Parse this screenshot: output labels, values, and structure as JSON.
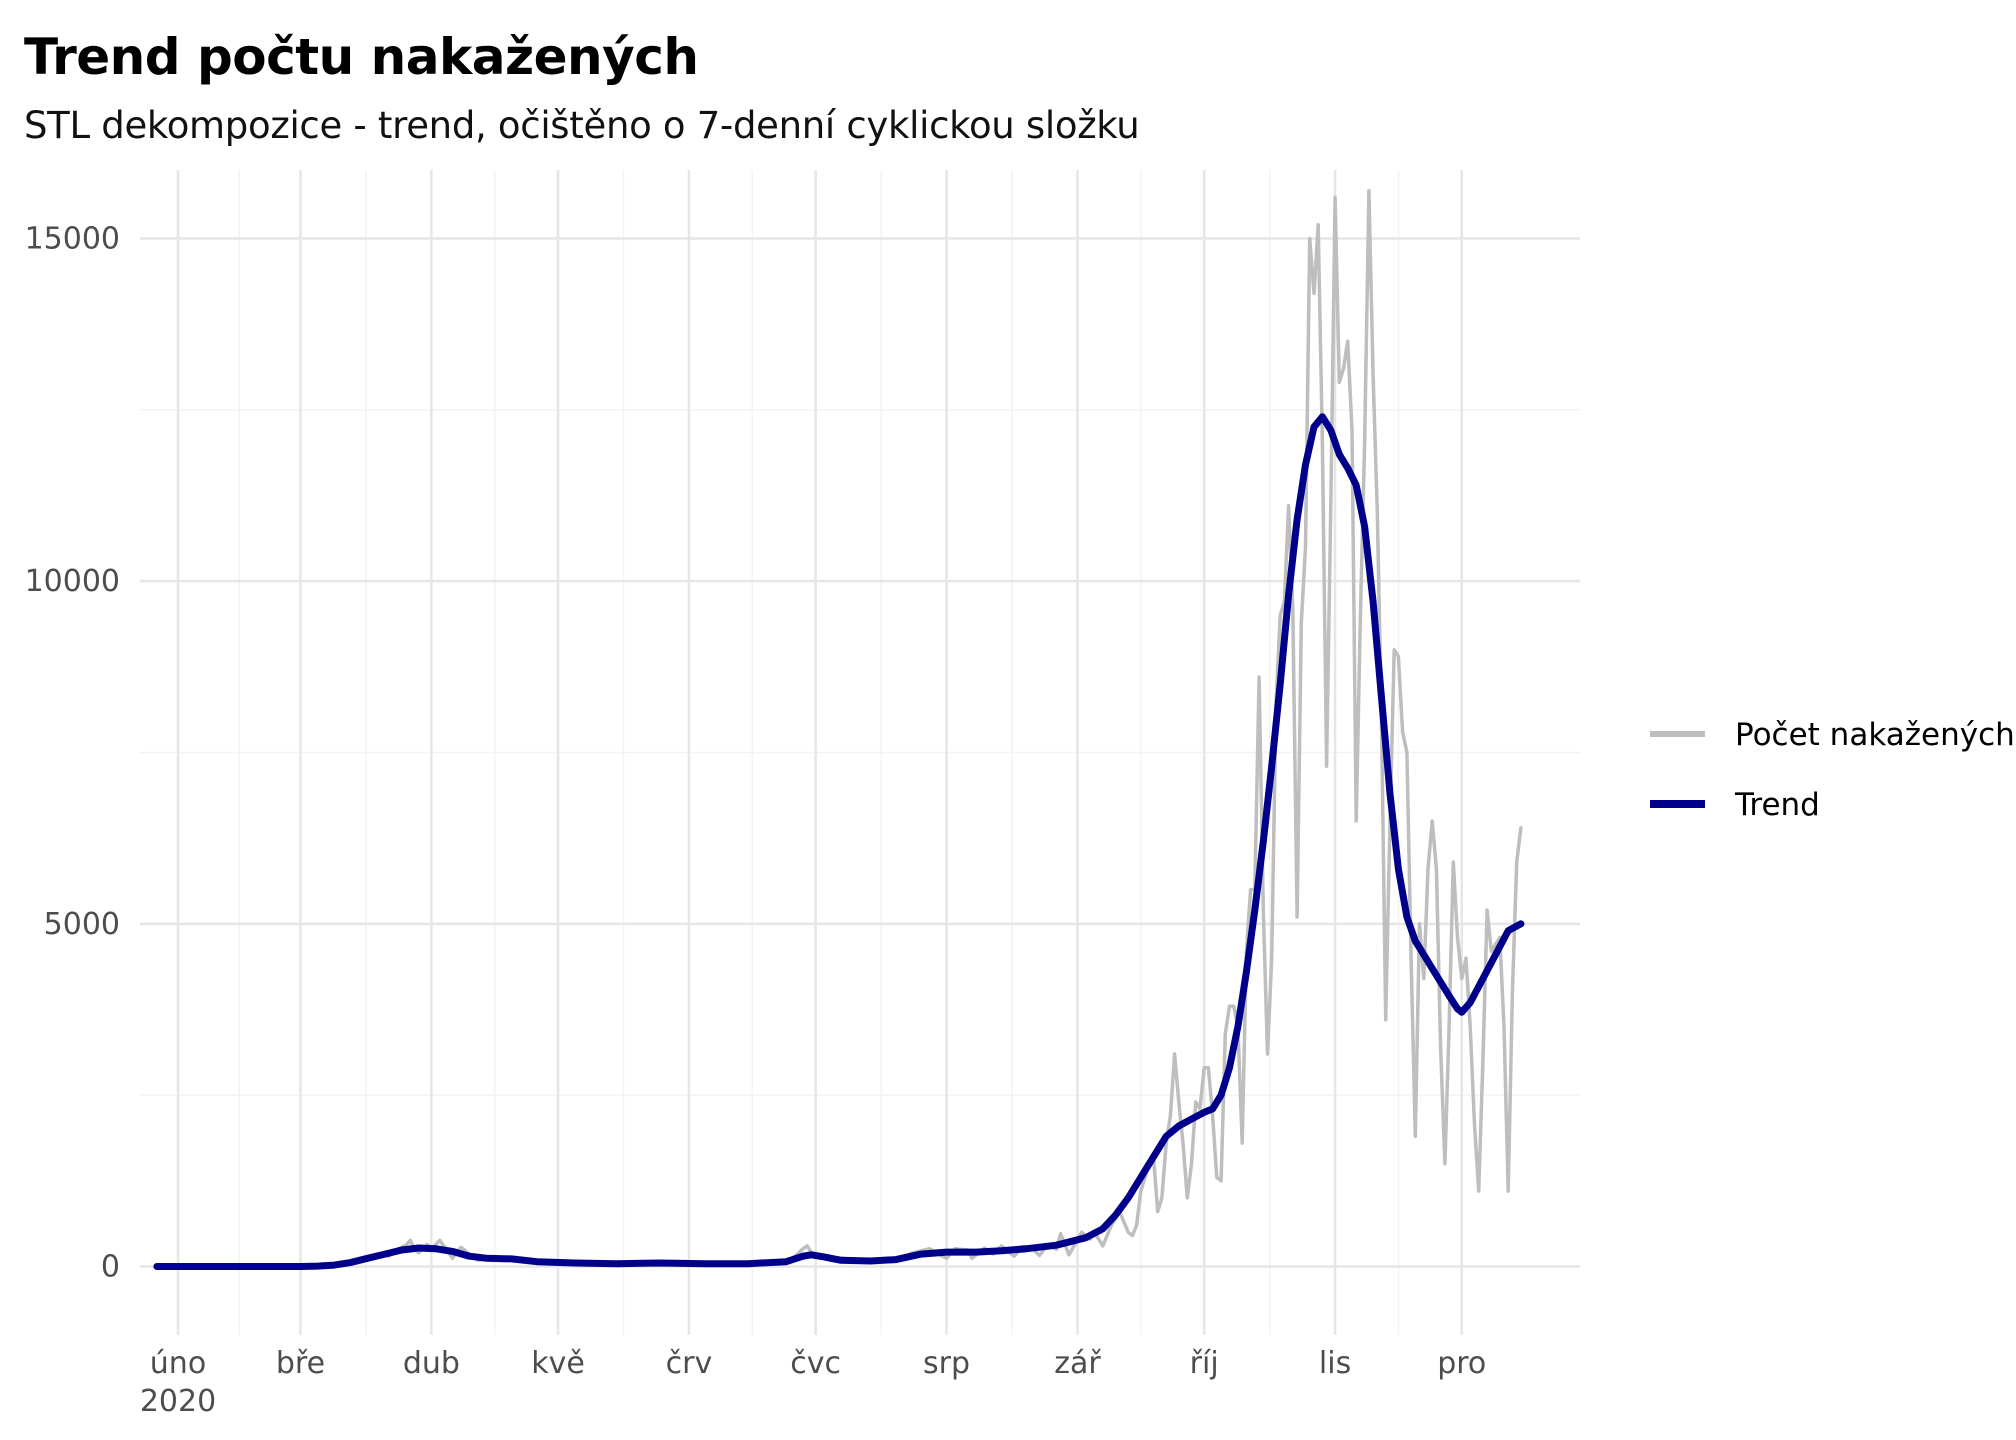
{
  "chart_data": {
    "type": "line",
    "title": "Trend počtu nakažených",
    "subtitle": "STL dekompozice - trend, očištěno o 7-denní cyklickou složku",
    "xlabel": "",
    "ylabel": "",
    "x_range": [
      "2020-01-23",
      "2020-12-29"
    ],
    "ylim": [
      -1000,
      16000
    ],
    "grid": true,
    "legend_position": "right",
    "x_ticks": [
      {
        "date": "2020-02-01",
        "label": "úno",
        "sublabel": "2020"
      },
      {
        "date": "2020-03-01",
        "label": "bře",
        "sublabel": ""
      },
      {
        "date": "2020-04-01",
        "label": "dub",
        "sublabel": ""
      },
      {
        "date": "2020-05-01",
        "label": "kvě",
        "sublabel": ""
      },
      {
        "date": "2020-06-01",
        "label": "črv",
        "sublabel": ""
      },
      {
        "date": "2020-07-01",
        "label": "čvc",
        "sublabel": ""
      },
      {
        "date": "2020-08-01",
        "label": "srp",
        "sublabel": ""
      },
      {
        "date": "2020-09-01",
        "label": "zář",
        "sublabel": ""
      },
      {
        "date": "2020-10-01",
        "label": "říj",
        "sublabel": ""
      },
      {
        "date": "2020-11-01",
        "label": "lis",
        "sublabel": ""
      },
      {
        "date": "2020-12-01",
        "label": "pro",
        "sublabel": ""
      }
    ],
    "y_ticks": [
      {
        "value": 0,
        "label": "0"
      },
      {
        "value": 5000,
        "label": "5000"
      },
      {
        "value": 10000,
        "label": "10000"
      },
      {
        "value": 15000,
        "label": "15000"
      }
    ],
    "series": [
      {
        "name": "Počet nakažených",
        "color": "#bebebe",
        "points": [
          [
            "2020-01-27",
            0
          ],
          [
            "2020-02-15",
            0
          ],
          [
            "2020-02-29",
            0
          ],
          [
            "2020-03-03",
            3
          ],
          [
            "2020-03-06",
            10
          ],
          [
            "2020-03-09",
            25
          ],
          [
            "2020-03-12",
            50
          ],
          [
            "2020-03-15",
            90
          ],
          [
            "2020-03-18",
            150
          ],
          [
            "2020-03-20",
            180
          ],
          [
            "2020-03-22",
            150
          ],
          [
            "2020-03-24",
            250
          ],
          [
            "2020-03-26",
            310
          ],
          [
            "2020-03-27",
            380
          ],
          [
            "2020-03-28",
            250
          ],
          [
            "2020-03-29",
            200
          ],
          [
            "2020-03-31",
            320
          ],
          [
            "2020-04-01",
            260
          ],
          [
            "2020-04-03",
            380
          ],
          [
            "2020-04-05",
            210
          ],
          [
            "2020-04-06",
            120
          ],
          [
            "2020-04-08",
            280
          ],
          [
            "2020-04-10",
            180
          ],
          [
            "2020-04-12",
            90
          ],
          [
            "2020-04-16",
            120
          ],
          [
            "2020-04-20",
            110
          ],
          [
            "2020-04-24",
            90
          ],
          [
            "2020-04-28",
            60
          ],
          [
            "2020-05-05",
            40
          ],
          [
            "2020-05-15",
            30
          ],
          [
            "2020-05-25",
            30
          ],
          [
            "2020-06-05",
            25
          ],
          [
            "2020-06-15",
            30
          ],
          [
            "2020-06-25",
            80
          ],
          [
            "2020-06-28",
            260
          ],
          [
            "2020-06-29",
            300
          ],
          [
            "2020-06-30",
            200
          ],
          [
            "2020-07-03",
            150
          ],
          [
            "2020-07-10",
            100
          ],
          [
            "2020-07-20",
            100
          ],
          [
            "2020-07-24",
            200
          ],
          [
            "2020-07-28",
            260
          ],
          [
            "2020-07-30",
            180
          ],
          [
            "2020-08-01",
            120
          ],
          [
            "2020-08-03",
            260
          ],
          [
            "2020-08-06",
            240
          ],
          [
            "2020-08-07",
            120
          ],
          [
            "2020-08-10",
            270
          ],
          [
            "2020-08-12",
            180
          ],
          [
            "2020-08-14",
            300
          ],
          [
            "2020-08-17",
            150
          ],
          [
            "2020-08-19",
            290
          ],
          [
            "2020-08-21",
            280
          ],
          [
            "2020-08-23",
            160
          ],
          [
            "2020-08-25",
            320
          ],
          [
            "2020-08-27",
            250
          ],
          [
            "2020-08-28",
            480
          ],
          [
            "2020-08-30",
            170
          ],
          [
            "2020-09-02",
            500
          ],
          [
            "2020-09-04",
            400
          ],
          [
            "2020-09-05",
            500
          ],
          [
            "2020-09-07",
            300
          ],
          [
            "2020-09-09",
            600
          ],
          [
            "2020-09-11",
            800
          ],
          [
            "2020-09-12",
            650
          ],
          [
            "2020-09-13",
            500
          ],
          [
            "2020-09-14",
            450
          ],
          [
            "2020-09-15",
            600
          ],
          [
            "2020-09-16",
            1100
          ],
          [
            "2020-09-17",
            1300
          ],
          [
            "2020-09-18",
            1500
          ],
          [
            "2020-09-19",
            1600
          ],
          [
            "2020-09-20",
            800
          ],
          [
            "2020-09-21",
            1000
          ],
          [
            "2020-09-22",
            1800
          ],
          [
            "2020-09-23",
            2200
          ],
          [
            "2020-09-24",
            3100
          ],
          [
            "2020-09-25",
            2400
          ],
          [
            "2020-09-26",
            1800
          ],
          [
            "2020-09-27",
            1000
          ],
          [
            "2020-09-28",
            1500
          ],
          [
            "2020-09-29",
            2400
          ],
          [
            "2020-09-30",
            2300
          ],
          [
            "2020-10-01",
            2900
          ],
          [
            "2020-10-02",
            2900
          ],
          [
            "2020-10-03",
            2200
          ],
          [
            "2020-10-04",
            1300
          ],
          [
            "2020-10-05",
            1250
          ],
          [
            "2020-10-06",
            3400
          ],
          [
            "2020-10-07",
            3800
          ],
          [
            "2020-10-08",
            3800
          ],
          [
            "2020-10-09",
            3500
          ],
          [
            "2020-10-10",
            1800
          ],
          [
            "2020-10-11",
            4600
          ],
          [
            "2020-10-12",
            5500
          ],
          [
            "2020-10-13",
            5500
          ],
          [
            "2020-10-14",
            8600
          ],
          [
            "2020-10-15",
            5200
          ],
          [
            "2020-10-16",
            3100
          ],
          [
            "2020-10-17",
            4500
          ],
          [
            "2020-10-18",
            8200
          ],
          [
            "2020-10-19",
            9500
          ],
          [
            "2020-10-20",
            9700
          ],
          [
            "2020-10-21",
            11100
          ],
          [
            "2020-10-22",
            9600
          ],
          [
            "2020-10-23",
            5100
          ],
          [
            "2020-10-24",
            9400
          ],
          [
            "2020-10-25",
            10500
          ],
          [
            "2020-10-26",
            15000
          ],
          [
            "2020-10-27",
            14200
          ],
          [
            "2020-10-28",
            15200
          ],
          [
            "2020-10-29",
            12000
          ],
          [
            "2020-10-30",
            7300
          ],
          [
            "2020-10-31",
            11200
          ],
          [
            "2020-11-01",
            15600
          ],
          [
            "2020-11-02",
            12900
          ],
          [
            "2020-11-03",
            13100
          ],
          [
            "2020-11-04",
            13500
          ],
          [
            "2020-11-05",
            12200
          ],
          [
            "2020-11-06",
            6500
          ],
          [
            "2020-11-07",
            9500
          ],
          [
            "2020-11-08",
            12000
          ],
          [
            "2020-11-09",
            15700
          ],
          [
            "2020-11-10",
            13000
          ],
          [
            "2020-11-11",
            11000
          ],
          [
            "2020-11-12",
            8000
          ],
          [
            "2020-11-13",
            3600
          ],
          [
            "2020-11-14",
            6500
          ],
          [
            "2020-11-15",
            9000
          ],
          [
            "2020-11-16",
            8900
          ],
          [
            "2020-11-17",
            7800
          ],
          [
            "2020-11-18",
            7500
          ],
          [
            "2020-11-19",
            4500
          ],
          [
            "2020-11-20",
            1900
          ],
          [
            "2020-11-21",
            5000
          ],
          [
            "2020-11-22",
            4200
          ],
          [
            "2020-11-23",
            5800
          ],
          [
            "2020-11-24",
            6500
          ],
          [
            "2020-11-25",
            5800
          ],
          [
            "2020-11-26",
            3200
          ],
          [
            "2020-11-27",
            1500
          ],
          [
            "2020-11-28",
            3500
          ],
          [
            "2020-11-29",
            5900
          ],
          [
            "2020-11-30",
            4800
          ],
          [
            "2020-12-01",
            4200
          ],
          [
            "2020-12-02",
            4500
          ],
          [
            "2020-12-03",
            3500
          ],
          [
            "2020-12-04",
            2100
          ],
          [
            "2020-12-05",
            1100
          ],
          [
            "2020-12-06",
            3000
          ],
          [
            "2020-12-07",
            5200
          ],
          [
            "2020-12-08",
            4600
          ],
          [
            "2020-12-09",
            4700
          ],
          [
            "2020-12-10",
            4800
          ],
          [
            "2020-12-11",
            3500
          ],
          [
            "2020-12-12",
            1100
          ],
          [
            "2020-12-13",
            4000
          ],
          [
            "2020-12-14",
            5900
          ],
          [
            "2020-12-15",
            6400
          ]
        ]
      },
      {
        "name": "Trend",
        "color": "#00008b",
        "points": [
          [
            "2020-01-27",
            0
          ],
          [
            "2020-02-15",
            0
          ],
          [
            "2020-03-01",
            0
          ],
          [
            "2020-03-05",
            5
          ],
          [
            "2020-03-09",
            20
          ],
          [
            "2020-03-13",
            60
          ],
          [
            "2020-03-17",
            120
          ],
          [
            "2020-03-21",
            180
          ],
          [
            "2020-03-25",
            240
          ],
          [
            "2020-03-29",
            270
          ],
          [
            "2020-04-02",
            260
          ],
          [
            "2020-04-06",
            220
          ],
          [
            "2020-04-10",
            150
          ],
          [
            "2020-04-14",
            120
          ],
          [
            "2020-04-20",
            110
          ],
          [
            "2020-04-26",
            70
          ],
          [
            "2020-05-05",
            50
          ],
          [
            "2020-05-15",
            40
          ],
          [
            "2020-05-25",
            50
          ],
          [
            "2020-06-05",
            40
          ],
          [
            "2020-06-15",
            40
          ],
          [
            "2020-06-24",
            70
          ],
          [
            "2020-06-28",
            150
          ],
          [
            "2020-06-30",
            170
          ],
          [
            "2020-07-03",
            140
          ],
          [
            "2020-07-07",
            90
          ],
          [
            "2020-07-14",
            80
          ],
          [
            "2020-07-20",
            100
          ],
          [
            "2020-07-26",
            180
          ],
          [
            "2020-08-01",
            210
          ],
          [
            "2020-08-08",
            210
          ],
          [
            "2020-08-14",
            230
          ],
          [
            "2020-08-20",
            260
          ],
          [
            "2020-08-27",
            310
          ],
          [
            "2020-09-03",
            420
          ],
          [
            "2020-09-07",
            550
          ],
          [
            "2020-09-10",
            750
          ],
          [
            "2020-09-13",
            1000
          ],
          [
            "2020-09-16",
            1300
          ],
          [
            "2020-09-19",
            1600
          ],
          [
            "2020-09-22",
            1900
          ],
          [
            "2020-09-25",
            2050
          ],
          [
            "2020-09-28",
            2150
          ],
          [
            "2020-10-01",
            2250
          ],
          [
            "2020-10-03",
            2300
          ],
          [
            "2020-10-05",
            2500
          ],
          [
            "2020-10-07",
            2900
          ],
          [
            "2020-10-09",
            3500
          ],
          [
            "2020-10-11",
            4300
          ],
          [
            "2020-10-13",
            5200
          ],
          [
            "2020-10-15",
            6200
          ],
          [
            "2020-10-17",
            7300
          ],
          [
            "2020-10-19",
            8500
          ],
          [
            "2020-10-21",
            9800
          ],
          [
            "2020-10-23",
            10900
          ],
          [
            "2020-10-25",
            11700
          ],
          [
            "2020-10-27",
            12250
          ],
          [
            "2020-10-29",
            12400
          ],
          [
            "2020-10-31",
            12200
          ],
          [
            "2020-11-02",
            11850
          ],
          [
            "2020-11-04",
            11650
          ],
          [
            "2020-11-06",
            11400
          ],
          [
            "2020-11-08",
            10800
          ],
          [
            "2020-11-10",
            9700
          ],
          [
            "2020-11-12",
            8300
          ],
          [
            "2020-11-14",
            6900
          ],
          [
            "2020-11-16",
            5800
          ],
          [
            "2020-11-18",
            5100
          ],
          [
            "2020-11-20",
            4750
          ],
          [
            "2020-11-22",
            4550
          ],
          [
            "2020-11-24",
            4350
          ],
          [
            "2020-11-26",
            4150
          ],
          [
            "2020-11-28",
            3950
          ],
          [
            "2020-11-30",
            3760
          ],
          [
            "2020-12-01",
            3710
          ],
          [
            "2020-12-03",
            3850
          ],
          [
            "2020-12-06",
            4200
          ],
          [
            "2020-12-09",
            4550
          ],
          [
            "2020-12-12",
            4900
          ],
          [
            "2020-12-15",
            5000
          ]
        ]
      }
    ]
  }
}
